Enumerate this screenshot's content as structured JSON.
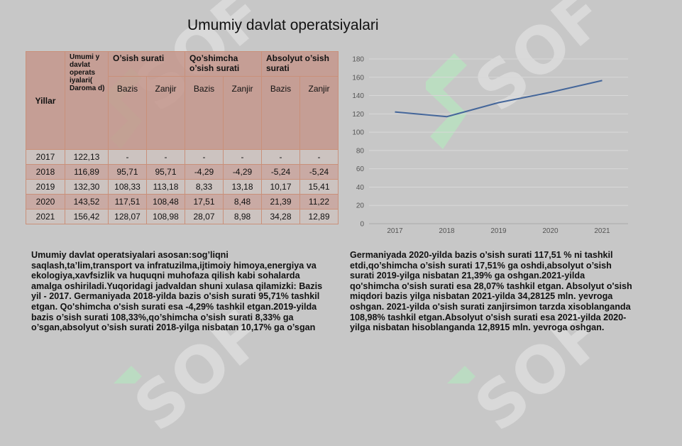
{
  "title": "Umumiy davlat operatsiyalari",
  "table": {
    "header": {
      "year": "Yillar",
      "main": "Umumi y davlat operats iyalari( Daroma d)",
      "groups": [
        "O’sish surati",
        "Qo’shimcha o’sish surati",
        "Absolyut o’sish surati"
      ],
      "sub": [
        "Bazis",
        "Zanjir",
        "Bazis",
        "Zanjir",
        "Bazis",
        "Zanjir"
      ]
    },
    "rows": [
      [
        "2017",
        "122,13",
        "-",
        "-",
        "-",
        "-",
        "-",
        "-"
      ],
      [
        "2018",
        "116,89",
        "95,71",
        "95,71",
        "-4,29",
        "-4,29",
        "-5,24",
        "-5,24"
      ],
      [
        "2019",
        "132,30",
        "108,33",
        "113,18",
        "8,33",
        "13,18",
        "10,17",
        "15,41"
      ],
      [
        "2020",
        "143,52",
        "117,51",
        "108,48",
        "17,51",
        "8,48",
        "21,39",
        "11,22"
      ],
      [
        "2021",
        "156,42",
        "128,07",
        "108,98",
        "28,07",
        "8,98",
        "34,28",
        "12,89"
      ]
    ]
  },
  "chart_data": {
    "type": "line",
    "x": [
      "2017",
      "2018",
      "2019",
      "2020",
      "2021"
    ],
    "series": [
      {
        "values": [
          122.13,
          116.89,
          132.3,
          143.52,
          156.42
        ],
        "color": "#44669a"
      }
    ],
    "ylim": [
      0,
      180
    ],
    "yticks": [
      "0",
      "20",
      "40",
      "60",
      "80",
      "100",
      "120",
      "140",
      "160",
      "180"
    ],
    "grid": true
  },
  "paragraphs": {
    "left": "Umumiy davlat operatsiyalari asosan:sog’liqni saqlash,ta’lim,transport va infratuzilma,ijtimoiy himoya,energiya va ekologiya,xavfsizlik va huquqni muhofaza qilish kabi sohalarda amalga oshiriladi.Yuqoridagi jadvaldan shuni xulasa qilamizki: Bazis yil - 2017. Germaniyada 2018-yilda bazis o'sish surati 95,71% tashkil etgan. Qo'shimcha o'sish surati esa -4,29% tashkil etgan.2019-yilda bazis o’sish surati 108,33%,qo’shimcha o’sish surati 8,33% ga o’sgan,absolyut o’sish surati 2018-yilga nisbatan 10,17% ga o’sgan",
    "right": "Germaniyada 2020-yilda bazis o’sish surati 117,51 % ni tashkil etdi,qo’shimcha o’sish surati 17,51% ga oshdi,absolyut o’sish surati 2019-yilga nisbatan  21,39% ga oshgan.2021-yilda  qo'shimcha o'sish surati esa 28,07% tashkil etgan. Absolyut o'sish miqdori bazis yilga nisbatan 2021-yilda 34,28125 mln. yevroga oshgan. 2021-yilda o'sish surati zanjirsimon tarzda xisoblanganda 108,98% tashkil etgan.Absolyut o'sish surati esa 2021-yilda 2020-yilga nisbatan hisoblanganda 12,8915 mln. yevroga oshgan."
  }
}
